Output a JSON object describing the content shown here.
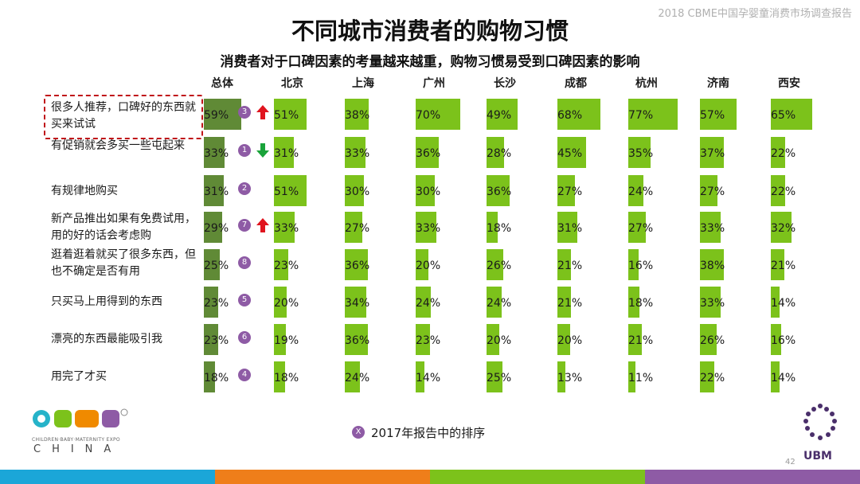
{
  "header_note": "2018 CBME中国孕婴童消费市场调查报告",
  "title": "不同城市消费者的购物习惯",
  "subtitle": "消费者对于口碑因素的考量越来越重，购物习惯易受到口碑因素的影响",
  "colors": {
    "total_bar": "#608a36",
    "city_bar": "#7cc21b",
    "rank_badge": "#8e5ba5",
    "up_arrow": "#e0141e",
    "down_arrow": "#1aa33a",
    "highlight_border": "#c0151a"
  },
  "chart_data": {
    "type": "bar",
    "title": "不同城市消费者的购物习惯",
    "unit": "%",
    "columns": [
      "总体",
      "北京",
      "上海",
      "广州",
      "长沙",
      "成都",
      "杭州",
      "济南",
      "西安"
    ],
    "rows": [
      {
        "label": "很多人推荐，口碑好的东西就买来试试",
        "values": [
          59,
          51,
          38,
          70,
          49,
          68,
          77,
          57,
          65
        ],
        "rank_2017": "3",
        "trend": "up",
        "highlighted": true
      },
      {
        "label": "有促销就会多买一些屯起来",
        "values": [
          33,
          31,
          33,
          36,
          28,
          45,
          35,
          37,
          22
        ],
        "rank_2017": "1",
        "trend": "down"
      },
      {
        "label": "有规律地购买",
        "values": [
          31,
          51,
          30,
          30,
          36,
          27,
          24,
          27,
          22
        ],
        "rank_2017": "2",
        "trend": ""
      },
      {
        "label": "新产品推出如果有免费试用，用的好的话会考虑购",
        "values": [
          29,
          33,
          27,
          33,
          18,
          31,
          27,
          33,
          32
        ],
        "rank_2017": "7",
        "trend": "up"
      },
      {
        "label": "逛着逛着就买了很多东西，但也不确定是否有用",
        "values": [
          25,
          23,
          36,
          20,
          26,
          21,
          16,
          38,
          21
        ],
        "rank_2017": "8",
        "trend": ""
      },
      {
        "label": "只买马上用得到的东西",
        "values": [
          23,
          20,
          34,
          24,
          24,
          21,
          18,
          33,
          14
        ],
        "rank_2017": "5",
        "trend": ""
      },
      {
        "label": "漂亮的东西最能吸引我",
        "values": [
          23,
          19,
          36,
          23,
          20,
          20,
          21,
          26,
          16
        ],
        "rank_2017": "6",
        "trend": ""
      },
      {
        "label": "用完了才买",
        "values": [
          18,
          18,
          24,
          14,
          25,
          13,
          11,
          22,
          14
        ],
        "rank_2017": "4",
        "trend": ""
      }
    ]
  },
  "legend": {
    "icon": "X",
    "text": "2017年报告中的排序"
  },
  "logo": {
    "sub": "CHILDREN·BABY·MATERNITY EXPO",
    "china": "CHINA"
  },
  "ubm": "UBM",
  "page_number": "42"
}
